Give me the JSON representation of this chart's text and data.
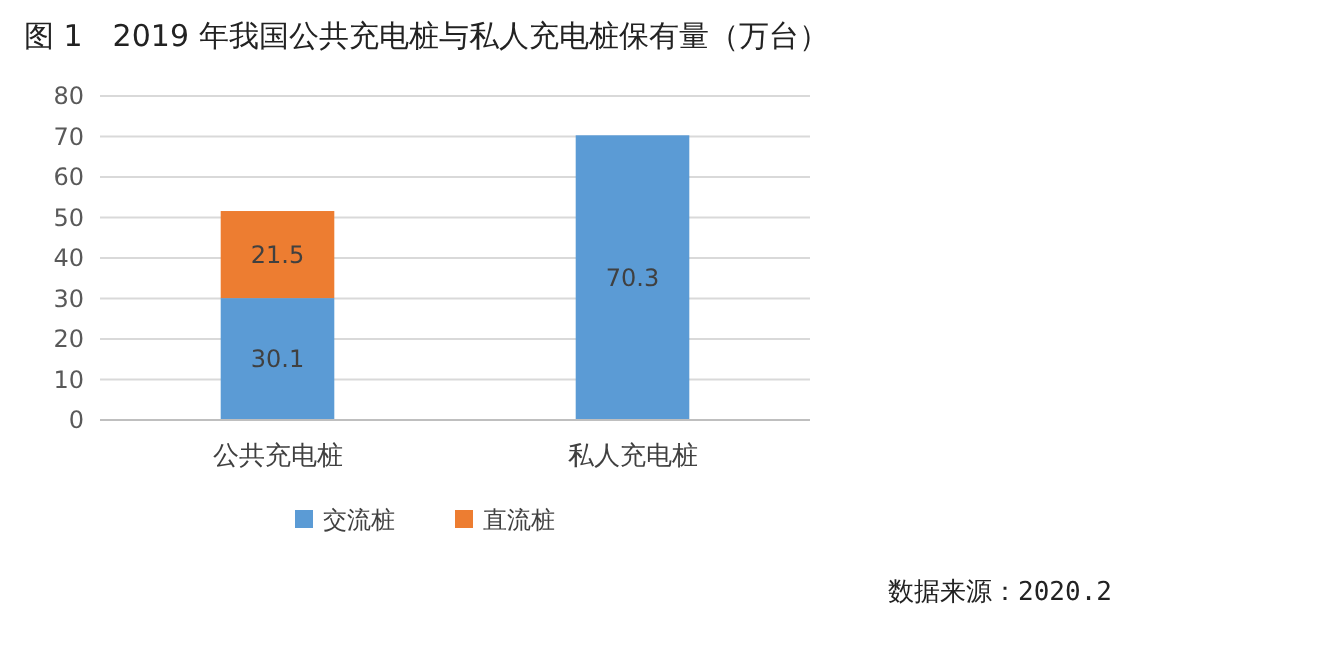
{
  "chart_data": {
    "type": "bar",
    "title": "图 1　2019 年我国公共充电桩与私人充电桩保有量（万台）",
    "categories": [
      "公共充电桩",
      "私人充电桩"
    ],
    "stacked": true,
    "series": [
      {
        "name": "交流桩",
        "color": "#5b9bd5",
        "values": [
          30.1,
          70.3
        ]
      },
      {
        "name": "直流桩",
        "color": "#ed7d31",
        "values": [
          21.5,
          null
        ]
      }
    ],
    "ylim": [
      0,
      80
    ],
    "yticks": [
      0,
      10,
      20,
      30,
      40,
      50,
      60,
      70,
      80
    ],
    "grid": "y",
    "legend": "bottom",
    "data_labels": true,
    "annotations": [
      "数据来源：2020.2"
    ]
  }
}
